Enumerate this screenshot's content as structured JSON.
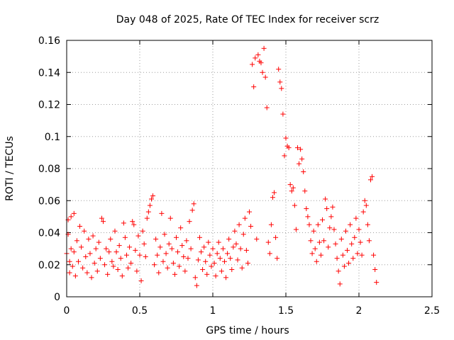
{
  "chart_data": {
    "type": "scatter",
    "title": "Day 048 of 2025, Rate Of TEC Index for receiver scrz",
    "xlabel": "GPS time / hours",
    "ylabel": "ROTI / TECUs",
    "xlim": [
      0,
      2.5
    ],
    "ylim": [
      0,
      0.16
    ],
    "xticks": [
      0,
      0.5,
      1,
      1.5,
      2,
      2.5
    ],
    "xtick_labels": [
      "0",
      "0.5",
      "1",
      "1.5",
      "2",
      "2.5"
    ],
    "yticks": [
      0,
      0.02,
      0.04,
      0.06,
      0.08,
      0.1,
      0.12,
      0.14,
      0.16
    ],
    "ytick_labels": [
      "0",
      "0.02",
      "0.04",
      "0.06",
      "0.08",
      "0.1",
      "0.12",
      "0.14",
      "0.16"
    ],
    "grid": true,
    "marker": "+",
    "color": "#ff0000",
    "series": [
      {
        "name": "ROTI",
        "points": [
          [
            0.0,
            0.027
          ],
          [
            0.01,
            0.048
          ],
          [
            0.01,
            0.039
          ],
          [
            0.02,
            0.022
          ],
          [
            0.02,
            0.015
          ],
          [
            0.03,
            0.05
          ],
          [
            0.03,
            0.03
          ],
          [
            0.04,
            0.019
          ],
          [
            0.05,
            0.052
          ],
          [
            0.05,
            0.028
          ],
          [
            0.06,
            0.013
          ],
          [
            0.07,
            0.035
          ],
          [
            0.08,
            0.022
          ],
          [
            0.09,
            0.044
          ],
          [
            0.1,
            0.031
          ],
          [
            0.11,
            0.018
          ],
          [
            0.12,
            0.041
          ],
          [
            0.13,
            0.025
          ],
          [
            0.14,
            0.015
          ],
          [
            0.15,
            0.036
          ],
          [
            0.16,
            0.027
          ],
          [
            0.17,
            0.012
          ],
          [
            0.18,
            0.038
          ],
          [
            0.19,
            0.021
          ],
          [
            0.2,
            0.03
          ],
          [
            0.21,
            0.016
          ],
          [
            0.22,
            0.034
          ],
          [
            0.23,
            0.024
          ],
          [
            0.24,
            0.049
          ],
          [
            0.25,
            0.047
          ],
          [
            0.26,
            0.02
          ],
          [
            0.27,
            0.03
          ],
          [
            0.28,
            0.014
          ],
          [
            0.29,
            0.028
          ],
          [
            0.3,
            0.036
          ],
          [
            0.31,
            0.022
          ],
          [
            0.32,
            0.019
          ],
          [
            0.33,
            0.041
          ],
          [
            0.34,
            0.028
          ],
          [
            0.35,
            0.017
          ],
          [
            0.36,
            0.032
          ],
          [
            0.37,
            0.024
          ],
          [
            0.38,
            0.013
          ],
          [
            0.39,
            0.046
          ],
          [
            0.4,
            0.037
          ],
          [
            0.41,
            0.026
          ],
          [
            0.42,
            0.018
          ],
          [
            0.43,
            0.031
          ],
          [
            0.44,
            0.021
          ],
          [
            0.45,
            0.047
          ],
          [
            0.46,
            0.045
          ],
          [
            0.47,
            0.029
          ],
          [
            0.48,
            0.016
          ],
          [
            0.49,
            0.038
          ],
          [
            0.5,
            0.026
          ],
          [
            0.51,
            0.01
          ],
          [
            0.52,
            0.041
          ],
          [
            0.53,
            0.033
          ],
          [
            0.54,
            0.025
          ],
          [
            0.55,
            0.049
          ],
          [
            0.56,
            0.053
          ],
          [
            0.57,
            0.057
          ],
          [
            0.58,
            0.061
          ],
          [
            0.59,
            0.063
          ],
          [
            0.6,
            0.02
          ],
          [
            0.61,
            0.036
          ],
          [
            0.62,
            0.026
          ],
          [
            0.63,
            0.015
          ],
          [
            0.64,
            0.031
          ],
          [
            0.65,
            0.052
          ],
          [
            0.66,
            0.022
          ],
          [
            0.67,
            0.039
          ],
          [
            0.68,
            0.027
          ],
          [
            0.69,
            0.018
          ],
          [
            0.7,
            0.033
          ],
          [
            0.71,
            0.049
          ],
          [
            0.72,
            0.03
          ],
          [
            0.73,
            0.021
          ],
          [
            0.74,
            0.014
          ],
          [
            0.75,
            0.037
          ],
          [
            0.76,
            0.028
          ],
          [
            0.77,
            0.019
          ],
          [
            0.78,
            0.043
          ],
          [
            0.79,
            0.032
          ],
          [
            0.8,
            0.025
          ],
          [
            0.81,
            0.016
          ],
          [
            0.82,
            0.035
          ],
          [
            0.83,
            0.024
          ],
          [
            0.84,
            0.047
          ],
          [
            0.85,
            0.03
          ],
          [
            0.86,
            0.054
          ],
          [
            0.87,
            0.058
          ],
          [
            0.88,
            0.012
          ],
          [
            0.89,
            0.007
          ],
          [
            0.9,
            0.023
          ],
          [
            0.91,
            0.037
          ],
          [
            0.92,
            0.028
          ],
          [
            0.93,
            0.017
          ],
          [
            0.94,
            0.031
          ],
          [
            0.95,
            0.022
          ],
          [
            0.96,
            0.014
          ],
          [
            0.97,
            0.034
          ],
          [
            0.98,
            0.026
          ],
          [
            0.99,
            0.019
          ],
          [
            1.0,
            0.03
          ],
          [
            1.01,
            0.021
          ],
          [
            1.02,
            0.013
          ],
          [
            1.03,
            0.027
          ],
          [
            1.04,
            0.034
          ],
          [
            1.05,
            0.024
          ],
          [
            1.06,
            0.016
          ],
          [
            1.07,
            0.03
          ],
          [
            1.08,
            0.022
          ],
          [
            1.09,
            0.012
          ],
          [
            1.1,
            0.027
          ],
          [
            1.11,
            0.036
          ],
          [
            1.12,
            0.024
          ],
          [
            1.13,
            0.017
          ],
          [
            1.14,
            0.031
          ],
          [
            1.15,
            0.041
          ],
          [
            1.16,
            0.033
          ],
          [
            1.17,
            0.023
          ],
          [
            1.18,
            0.045
          ],
          [
            1.19,
            0.03
          ],
          [
            1.2,
            0.018
          ],
          [
            1.21,
            0.039
          ],
          [
            1.22,
            0.049
          ],
          [
            1.23,
            0.029
          ],
          [
            1.24,
            0.021
          ],
          [
            1.25,
            0.053
          ],
          [
            1.26,
            0.044
          ],
          [
            1.27,
            0.145
          ],
          [
            1.28,
            0.131
          ],
          [
            1.29,
            0.149
          ],
          [
            1.3,
            0.036
          ],
          [
            1.31,
            0.151
          ],
          [
            1.32,
            0.147
          ],
          [
            1.33,
            0.146
          ],
          [
            1.34,
            0.14
          ],
          [
            1.35,
            0.155
          ],
          [
            1.36,
            0.137
          ],
          [
            1.37,
            0.118
          ],
          [
            1.38,
            0.034
          ],
          [
            1.39,
            0.027
          ],
          [
            1.4,
            0.045
          ],
          [
            1.41,
            0.062
          ],
          [
            1.42,
            0.065
          ],
          [
            1.43,
            0.037
          ],
          [
            1.44,
            0.024
          ],
          [
            1.45,
            0.142
          ],
          [
            1.46,
            0.134
          ],
          [
            1.47,
            0.13
          ],
          [
            1.48,
            0.114
          ],
          [
            1.49,
            0.088
          ],
          [
            1.5,
            0.099
          ],
          [
            1.51,
            0.094
          ],
          [
            1.52,
            0.093
          ],
          [
            1.53,
            0.07
          ],
          [
            1.54,
            0.066
          ],
          [
            1.55,
            0.068
          ],
          [
            1.56,
            0.057
          ],
          [
            1.57,
            0.042
          ],
          [
            1.58,
            0.093
          ],
          [
            1.59,
            0.083
          ],
          [
            1.6,
            0.092
          ],
          [
            1.61,
            0.086
          ],
          [
            1.62,
            0.078
          ],
          [
            1.63,
            0.066
          ],
          [
            1.64,
            0.055
          ],
          [
            1.65,
            0.05
          ],
          [
            1.66,
            0.045
          ],
          [
            1.67,
            0.035
          ],
          [
            1.68,
            0.027
          ],
          [
            1.69,
            0.041
          ],
          [
            1.7,
            0.03
          ],
          [
            1.71,
            0.022
          ],
          [
            1.72,
            0.045
          ],
          [
            1.73,
            0.034
          ],
          [
            1.74,
            0.026
          ],
          [
            1.75,
            0.048
          ],
          [
            1.76,
            0.035
          ],
          [
            1.77,
            0.061
          ],
          [
            1.78,
            0.055
          ],
          [
            1.79,
            0.031
          ],
          [
            1.8,
            0.043
          ],
          [
            1.81,
            0.05
          ],
          [
            1.82,
            0.056
          ],
          [
            1.83,
            0.042
          ],
          [
            1.84,
            0.033
          ],
          [
            1.85,
            0.024
          ],
          [
            1.86,
            0.016
          ],
          [
            1.87,
            0.008
          ],
          [
            1.88,
            0.036
          ],
          [
            1.89,
            0.026
          ],
          [
            1.9,
            0.019
          ],
          [
            1.91,
            0.041
          ],
          [
            1.92,
            0.029
          ],
          [
            1.93,
            0.021
          ],
          [
            1.94,
            0.045
          ],
          [
            1.95,
            0.033
          ],
          [
            1.96,
            0.024
          ],
          [
            1.97,
            0.037
          ],
          [
            1.98,
            0.049
          ],
          [
            1.99,
            0.027
          ],
          [
            2.0,
            0.042
          ],
          [
            2.01,
            0.034
          ],
          [
            2.02,
            0.026
          ],
          [
            2.03,
            0.053
          ],
          [
            2.04,
            0.06
          ],
          [
            2.05,
            0.057
          ],
          [
            2.06,
            0.045
          ],
          [
            2.07,
            0.035
          ],
          [
            2.08,
            0.073
          ],
          [
            2.09,
            0.075
          ],
          [
            2.1,
            0.026
          ],
          [
            2.11,
            0.017
          ],
          [
            2.12,
            0.009
          ]
        ]
      }
    ]
  }
}
